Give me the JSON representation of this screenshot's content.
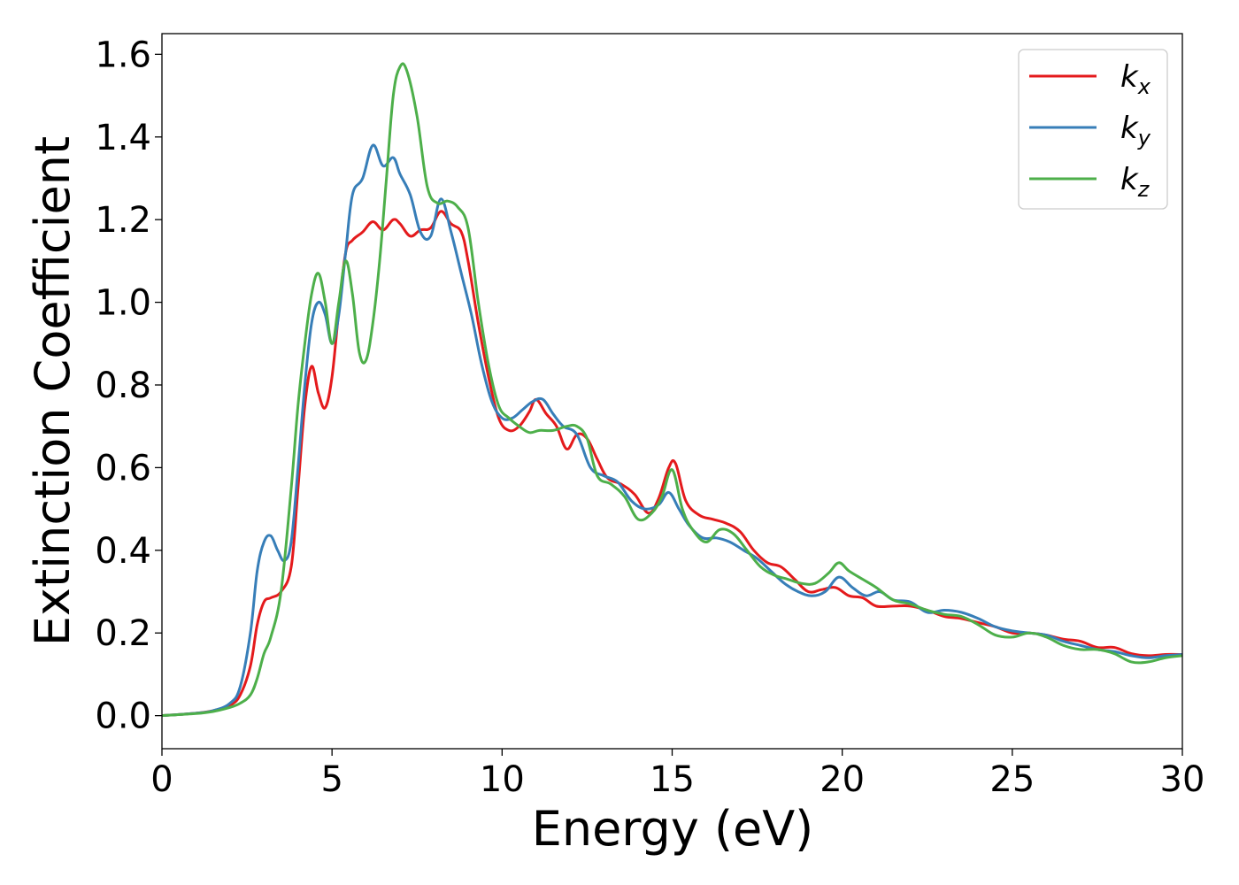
{
  "chart_data": {
    "type": "line",
    "title": "",
    "xlabel": "Energy (eV)",
    "ylabel": "Extinction Coefficient",
    "xlim": [
      0,
      30
    ],
    "ylim": [
      -0.08,
      1.65
    ],
    "xticks": [
      0,
      5,
      10,
      15,
      20,
      25,
      30
    ],
    "xtick_labels": [
      "0",
      "5",
      "10",
      "15",
      "20",
      "25",
      "30"
    ],
    "yticks": [
      0.0,
      0.2,
      0.4,
      0.6,
      0.8,
      1.0,
      1.2,
      1.4,
      1.6
    ],
    "ytick_labels": [
      "0.0",
      "0.2",
      "0.4",
      "0.6",
      "0.8",
      "1.0",
      "1.2",
      "1.4",
      "1.6"
    ],
    "grid": false,
    "legend_position": "top-right",
    "series": [
      {
        "name": "kx",
        "label_base": "k",
        "label_sub": "x",
        "color": "#e41a1c",
        "x": [
          0,
          1,
          1.5,
          2,
          2.3,
          2.6,
          2.8,
          3.0,
          3.2,
          3.5,
          3.8,
          4.0,
          4.2,
          4.4,
          4.6,
          4.8,
          5.0,
          5.2,
          5.4,
          5.6,
          5.9,
          6.2,
          6.5,
          6.8,
          7.0,
          7.3,
          7.6,
          7.9,
          8.2,
          8.5,
          8.8,
          9.0,
          9.3,
          9.6,
          9.9,
          10.2,
          10.5,
          10.8,
          11.0,
          11.3,
          11.6,
          11.9,
          12.2,
          12.5,
          12.8,
          13.1,
          13.5,
          13.9,
          14.3,
          14.6,
          14.9,
          15.1,
          15.4,
          15.8,
          16.2,
          16.6,
          17.0,
          17.4,
          17.8,
          18.2,
          18.6,
          19.0,
          19.4,
          19.8,
          20.2,
          20.6,
          21.0,
          21.5,
          22.0,
          22.5,
          23.0,
          23.5,
          24.0,
          24.5,
          25.0,
          25.5,
          26.0,
          26.5,
          27.0,
          27.5,
          28.0,
          28.5,
          29.0,
          29.5,
          30.0
        ],
        "y": [
          0.0,
          0.006,
          0.012,
          0.025,
          0.05,
          0.12,
          0.22,
          0.275,
          0.285,
          0.3,
          0.36,
          0.55,
          0.75,
          0.845,
          0.78,
          0.745,
          0.82,
          0.98,
          1.12,
          1.15,
          1.17,
          1.195,
          1.175,
          1.2,
          1.19,
          1.16,
          1.175,
          1.18,
          1.22,
          1.19,
          1.17,
          1.1,
          0.95,
          0.82,
          0.72,
          0.69,
          0.7,
          0.735,
          0.765,
          0.73,
          0.7,
          0.645,
          0.68,
          0.67,
          0.62,
          0.575,
          0.56,
          0.535,
          0.49,
          0.525,
          0.6,
          0.61,
          0.52,
          0.485,
          0.475,
          0.465,
          0.445,
          0.4,
          0.37,
          0.36,
          0.33,
          0.3,
          0.305,
          0.31,
          0.29,
          0.285,
          0.265,
          0.265,
          0.265,
          0.255,
          0.24,
          0.235,
          0.225,
          0.215,
          0.2,
          0.2,
          0.195,
          0.185,
          0.18,
          0.165,
          0.165,
          0.15,
          0.145,
          0.148,
          0.148
        ]
      },
      {
        "name": "ky",
        "label_base": "k",
        "label_sub": "y",
        "color": "#377eb8",
        "x": [
          0,
          1,
          1.5,
          2,
          2.3,
          2.6,
          2.8,
          3.0,
          3.2,
          3.4,
          3.6,
          3.8,
          4.0,
          4.2,
          4.4,
          4.6,
          4.8,
          5.0,
          5.2,
          5.4,
          5.6,
          5.9,
          6.2,
          6.5,
          6.8,
          7.0,
          7.3,
          7.6,
          7.9,
          8.2,
          8.5,
          8.8,
          9.1,
          9.4,
          9.7,
          10.0,
          10.3,
          10.6,
          10.9,
          11.2,
          11.5,
          11.8,
          12.2,
          12.6,
          13.0,
          13.4,
          13.8,
          14.2,
          14.6,
          14.9,
          15.2,
          15.5,
          15.9,
          16.3,
          16.7,
          17.1,
          17.5,
          17.9,
          18.3,
          18.7,
          19.1,
          19.5,
          19.9,
          20.3,
          20.7,
          21.1,
          21.5,
          22.0,
          22.5,
          23.0,
          23.5,
          24.0,
          24.5,
          25.0,
          25.5,
          26.0,
          26.5,
          27.0,
          27.5,
          28.0,
          28.5,
          29.0,
          29.5,
          30.0
        ],
        "y": [
          0.0,
          0.006,
          0.012,
          0.03,
          0.07,
          0.2,
          0.35,
          0.42,
          0.435,
          0.4,
          0.375,
          0.42,
          0.6,
          0.8,
          0.95,
          1.0,
          0.97,
          0.9,
          0.97,
          1.12,
          1.26,
          1.3,
          1.38,
          1.33,
          1.35,
          1.31,
          1.26,
          1.17,
          1.16,
          1.25,
          1.17,
          1.07,
          0.97,
          0.85,
          0.76,
          0.72,
          0.72,
          0.74,
          0.76,
          0.765,
          0.73,
          0.7,
          0.68,
          0.6,
          0.58,
          0.565,
          0.52,
          0.5,
          0.51,
          0.54,
          0.5,
          0.46,
          0.43,
          0.43,
          0.42,
          0.4,
          0.38,
          0.35,
          0.32,
          0.3,
          0.29,
          0.3,
          0.335,
          0.31,
          0.29,
          0.3,
          0.28,
          0.275,
          0.25,
          0.255,
          0.25,
          0.235,
          0.215,
          0.205,
          0.2,
          0.195,
          0.18,
          0.17,
          0.16,
          0.155,
          0.145,
          0.14,
          0.145,
          0.148
        ]
      },
      {
        "name": "kz",
        "label_base": "k",
        "label_sub": "z",
        "color": "#4daf4a",
        "x": [
          0,
          1,
          1.5,
          2,
          2.3,
          2.6,
          2.8,
          3.0,
          3.2,
          3.5,
          3.8,
          4.0,
          4.2,
          4.4,
          4.6,
          4.8,
          5.0,
          5.2,
          5.4,
          5.6,
          5.8,
          6.0,
          6.2,
          6.4,
          6.6,
          6.8,
          7.0,
          7.2,
          7.5,
          7.8,
          8.1,
          8.4,
          8.7,
          9.0,
          9.3,
          9.6,
          9.9,
          10.2,
          10.5,
          10.8,
          11.1,
          11.5,
          11.9,
          12.2,
          12.5,
          12.8,
          13.2,
          13.6,
          14.0,
          14.4,
          14.7,
          15.0,
          15.3,
          15.6,
          16.0,
          16.4,
          16.8,
          17.2,
          17.6,
          18.0,
          18.4,
          18.8,
          19.2,
          19.6,
          19.9,
          20.2,
          20.6,
          21.0,
          21.5,
          22.0,
          22.5,
          23.0,
          23.5,
          24.0,
          24.5,
          25.0,
          25.5,
          26.0,
          26.5,
          27.0,
          27.5,
          28.0,
          28.5,
          29.0,
          29.5,
          30.0
        ],
        "y": [
          0.0,
          0.005,
          0.01,
          0.02,
          0.03,
          0.05,
          0.09,
          0.15,
          0.19,
          0.3,
          0.55,
          0.75,
          0.9,
          1.02,
          1.07,
          1.0,
          0.9,
          1.0,
          1.1,
          1.02,
          0.88,
          0.86,
          0.95,
          1.1,
          1.3,
          1.5,
          1.57,
          1.56,
          1.45,
          1.28,
          1.24,
          1.245,
          1.23,
          1.18,
          1.0,
          0.85,
          0.75,
          0.72,
          0.7,
          0.685,
          0.69,
          0.69,
          0.7,
          0.7,
          0.67,
          0.58,
          0.56,
          0.53,
          0.475,
          0.49,
          0.53,
          0.595,
          0.5,
          0.45,
          0.42,
          0.45,
          0.44,
          0.4,
          0.36,
          0.34,
          0.33,
          0.32,
          0.32,
          0.345,
          0.37,
          0.35,
          0.33,
          0.31,
          0.28,
          0.27,
          0.255,
          0.245,
          0.24,
          0.22,
          0.195,
          0.19,
          0.2,
          0.19,
          0.17,
          0.16,
          0.16,
          0.15,
          0.13,
          0.13,
          0.14,
          0.145
        ]
      }
    ]
  }
}
